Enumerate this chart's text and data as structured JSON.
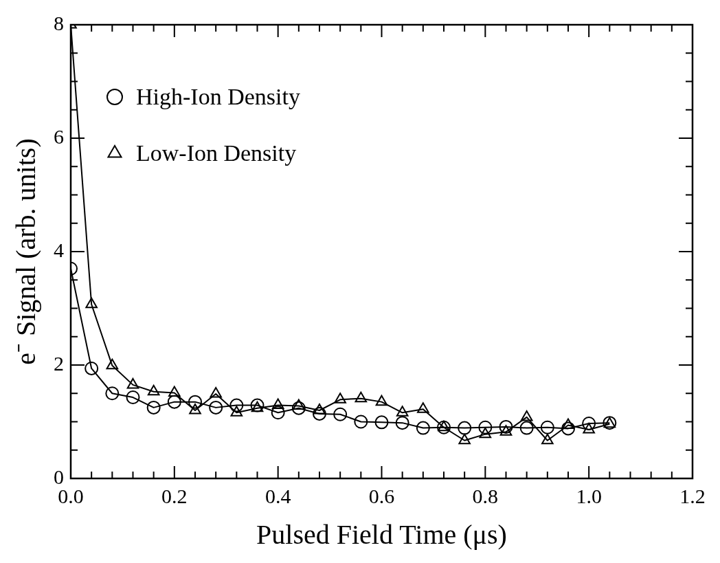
{
  "chart_data": {
    "type": "line",
    "xlabel": "Pulsed Field Time (μs)",
    "ylabel": "e⁻ Signal (arb. units)",
    "xlim": [
      0,
      1.2
    ],
    "ylim": [
      0,
      8
    ],
    "xticks": [
      {
        "value": 0,
        "label": "0.0"
      },
      {
        "value": 0.04,
        "label": null
      },
      {
        "value": 0.08,
        "label": null
      },
      {
        "value": 0.12,
        "label": null
      },
      {
        "value": 0.16,
        "label": null
      },
      {
        "value": 0.2,
        "label": "0.2"
      },
      {
        "value": 0.24,
        "label": null
      },
      {
        "value": 0.28,
        "label": null
      },
      {
        "value": 0.32,
        "label": null
      },
      {
        "value": 0.36,
        "label": null
      },
      {
        "value": 0.4,
        "label": "0.4"
      },
      {
        "value": 0.44,
        "label": null
      },
      {
        "value": 0.48,
        "label": null
      },
      {
        "value": 0.52,
        "label": null
      },
      {
        "value": 0.56,
        "label": null
      },
      {
        "value": 0.6,
        "label": "0.6"
      },
      {
        "value": 0.64,
        "label": null
      },
      {
        "value": 0.68,
        "label": null
      },
      {
        "value": 0.72,
        "label": null
      },
      {
        "value": 0.76,
        "label": null
      },
      {
        "value": 0.8,
        "label": "0.8"
      },
      {
        "value": 0.84,
        "label": null
      },
      {
        "value": 0.88,
        "label": null
      },
      {
        "value": 0.92,
        "label": null
      },
      {
        "value": 0.96,
        "label": null
      },
      {
        "value": 1,
        "label": "1.0"
      },
      {
        "value": 1.04,
        "label": null
      },
      {
        "value": 1.08,
        "label": null
      },
      {
        "value": 1.12,
        "label": null
      },
      {
        "value": 1.16,
        "label": null
      },
      {
        "value": 1.2,
        "label": "1.2"
      }
    ],
    "yticks": [
      0,
      {
        "value": 0.5,
        "label": null
      },
      {
        "value": 1,
        "label": null
      },
      {
        "value": 1.5,
        "label": null
      },
      2,
      {
        "value": 2.5,
        "label": null
      },
      {
        "value": 3,
        "label": null
      },
      {
        "value": 3.5,
        "label": null
      },
      4,
      {
        "value": 4.5,
        "label": null
      },
      {
        "value": 5,
        "label": null
      },
      {
        "value": 5.5,
        "label": null
      },
      6,
      {
        "value": 6.5,
        "label": null
      },
      {
        "value": 7,
        "label": null
      },
      {
        "value": 7.5,
        "label": null
      },
      8
    ],
    "grid": false,
    "legend": "top left",
    "line_style": "solid",
    "x": [
      0,
      0.04,
      0.08,
      0.12,
      0.16,
      0.2,
      0.24,
      0.28,
      0.32,
      0.36,
      0.4,
      0.44,
      0.48,
      0.52,
      0.56,
      0.6,
      0.64,
      0.68,
      0.72,
      0.76,
      0.8,
      0.84,
      0.88,
      0.92,
      0.96,
      1,
      1.04
    ],
    "series": [
      {
        "name": "High-Ion Density",
        "color": "#000000",
        "marker": "circle",
        "values": [
          3.7,
          1.94,
          1.5,
          1.43,
          1.25,
          1.35,
          1.35,
          1.25,
          1.29,
          1.29,
          1.16,
          1.24,
          1.14,
          1.13,
          1.0,
          0.99,
          0.98,
          0.89,
          0.9,
          0.89,
          0.9,
          0.91,
          0.89,
          0.9,
          0.88,
          0.97,
          0.98
        ]
      },
      {
        "name": "Low-Ion Density",
        "color": "#000000",
        "marker": "triangle",
        "values": [
          8,
          3.07,
          1.99,
          1.65,
          1.53,
          1.51,
          1.2,
          1.49,
          1.16,
          1.24,
          1.29,
          1.28,
          1.2,
          1.39,
          1.41,
          1.35,
          1.16,
          1.22,
          0.9,
          0.67,
          0.78,
          0.82,
          1.08,
          0.67,
          0.94,
          0.86,
          0.96
        ]
      }
    ]
  }
}
